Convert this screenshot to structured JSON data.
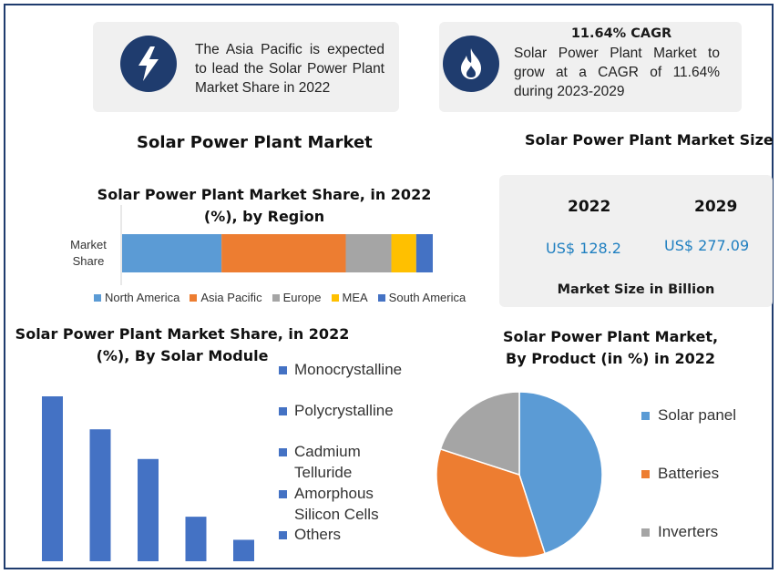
{
  "cards": {
    "region": {
      "text": "The Asia Pacific is expected to lead the Solar Power Plant Market Share in 2022",
      "icon": "lightning-bolt-icon"
    },
    "cagr": {
      "title": "11.64% CAGR",
      "text": "Solar Power Plant Market to grow at a CAGR of 11.64% during 2023-2029",
      "icon": "flame-icon"
    }
  },
  "main_title": "Solar Power Plant Market",
  "market_size": {
    "heading": "Solar Power Plant Market Size",
    "years": [
      "2022",
      "2029"
    ],
    "values": [
      "US$ 128.2",
      "US$ 277.09"
    ],
    "caption": "Market Size in Billion"
  },
  "colors": {
    "navy": "#1f3c6e",
    "blue": "#5b9bd5",
    "orange": "#ed7d31",
    "gray": "#a5a5a5",
    "yellow": "#ffc000",
    "dark_blue": "#4472c4",
    "value_blue": "#1f7fc0"
  },
  "chart_data": [
    {
      "type": "bar",
      "orientation": "horizontal-stacked",
      "title_line1": "Solar Power Plant Market Share, in 2022",
      "title_line2": "(%), by Region",
      "categories": [
        "Market Share"
      ],
      "category_label_lines": [
        "Market",
        "Share"
      ],
      "series": [
        {
          "name": "North America",
          "values": [
            24
          ],
          "color": "#5b9bd5"
        },
        {
          "name": "Asia Pacific",
          "values": [
            30
          ],
          "color": "#ed7d31"
        },
        {
          "name": "Europe",
          "values": [
            11
          ],
          "color": "#a5a5a5"
        },
        {
          "name": "MEA",
          "values": [
            6
          ],
          "color": "#ffc000"
        },
        {
          "name": "South America",
          "values": [
            4
          ],
          "color": "#4472c4"
        }
      ],
      "legend": "bottom"
    },
    {
      "type": "bar",
      "title_line1": "Solar Power Plant Market Share, in 2022",
      "title_line2": "(%), By Solar Module",
      "categories": [
        "Monocrystalline",
        "Polycrystalline",
        "Cadmium Telluride",
        "Amorphous Silicon Cells",
        "Others"
      ],
      "legend_lines": [
        [
          "Monocrystalline"
        ],
        [
          "Polycrystalline"
        ],
        [
          "Cadmium",
          "Telluride"
        ],
        [
          "Amorphous",
          "Silicon Cells"
        ],
        [
          "Others"
        ]
      ],
      "values": [
        100,
        80,
        62,
        27,
        13
      ],
      "color": "#4472c4",
      "ylim": [
        0,
        100
      ],
      "legend": "right"
    },
    {
      "type": "pie",
      "title_line1": "Solar Power Plant Market,",
      "title_line2": "By Product (in %) in 2022",
      "labels": [
        "Solar panel",
        "Batteries",
        "Inverters"
      ],
      "values": [
        45,
        35,
        20
      ],
      "colors": [
        "#5b9bd5",
        "#ed7d31",
        "#a5a5a5"
      ],
      "legend": "right"
    }
  ]
}
